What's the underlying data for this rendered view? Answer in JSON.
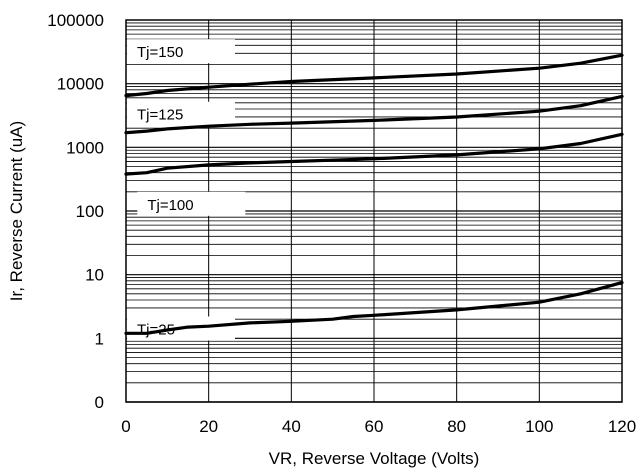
{
  "chart_data": {
    "type": "line",
    "title": "",
    "xlabel": "VR, Reverse Voltage (Volts)",
    "ylabel": "Ir, Reverse Current (uA)",
    "xlim": [
      0,
      120
    ],
    "ylim": [
      0,
      100000
    ],
    "y_scale": "log",
    "grid": true,
    "x_ticks": [
      "0",
      "20",
      "40",
      "60",
      "80",
      "100",
      "120"
    ],
    "y_ticks": [
      "0",
      "1",
      "10",
      "100",
      "1000",
      "10000",
      "100000"
    ],
    "series": [
      {
        "name": "Tj=150",
        "x": [
          0,
          5,
          10,
          20,
          30,
          40,
          60,
          80,
          100,
          110,
          120
        ],
        "y": [
          6500,
          7000,
          7800,
          8800,
          9800,
          10800,
          12300,
          14200,
          17500,
          21000,
          28000
        ]
      },
      {
        "name": "Tj=125",
        "x": [
          0,
          5,
          10,
          20,
          30,
          40,
          60,
          80,
          100,
          110,
          120
        ],
        "y": [
          1700,
          1800,
          1950,
          2150,
          2300,
          2400,
          2650,
          3000,
          3700,
          4500,
          6300
        ]
      },
      {
        "name": "Tj=100",
        "x": [
          0,
          5,
          10,
          20,
          30,
          40,
          60,
          80,
          100,
          110,
          120
        ],
        "y": [
          380,
          400,
          470,
          530,
          570,
          600,
          660,
          760,
          950,
          1150,
          1600
        ]
      },
      {
        "name": "Tj=25",
        "x": [
          0,
          5,
          10,
          15,
          20,
          30,
          40,
          50,
          55,
          60,
          80,
          100,
          110,
          120
        ],
        "y": [
          1.2,
          1.2,
          1.35,
          1.5,
          1.55,
          1.75,
          1.85,
          2.0,
          2.2,
          2.3,
          2.8,
          3.7,
          5.0,
          7.5
        ]
      }
    ]
  }
}
